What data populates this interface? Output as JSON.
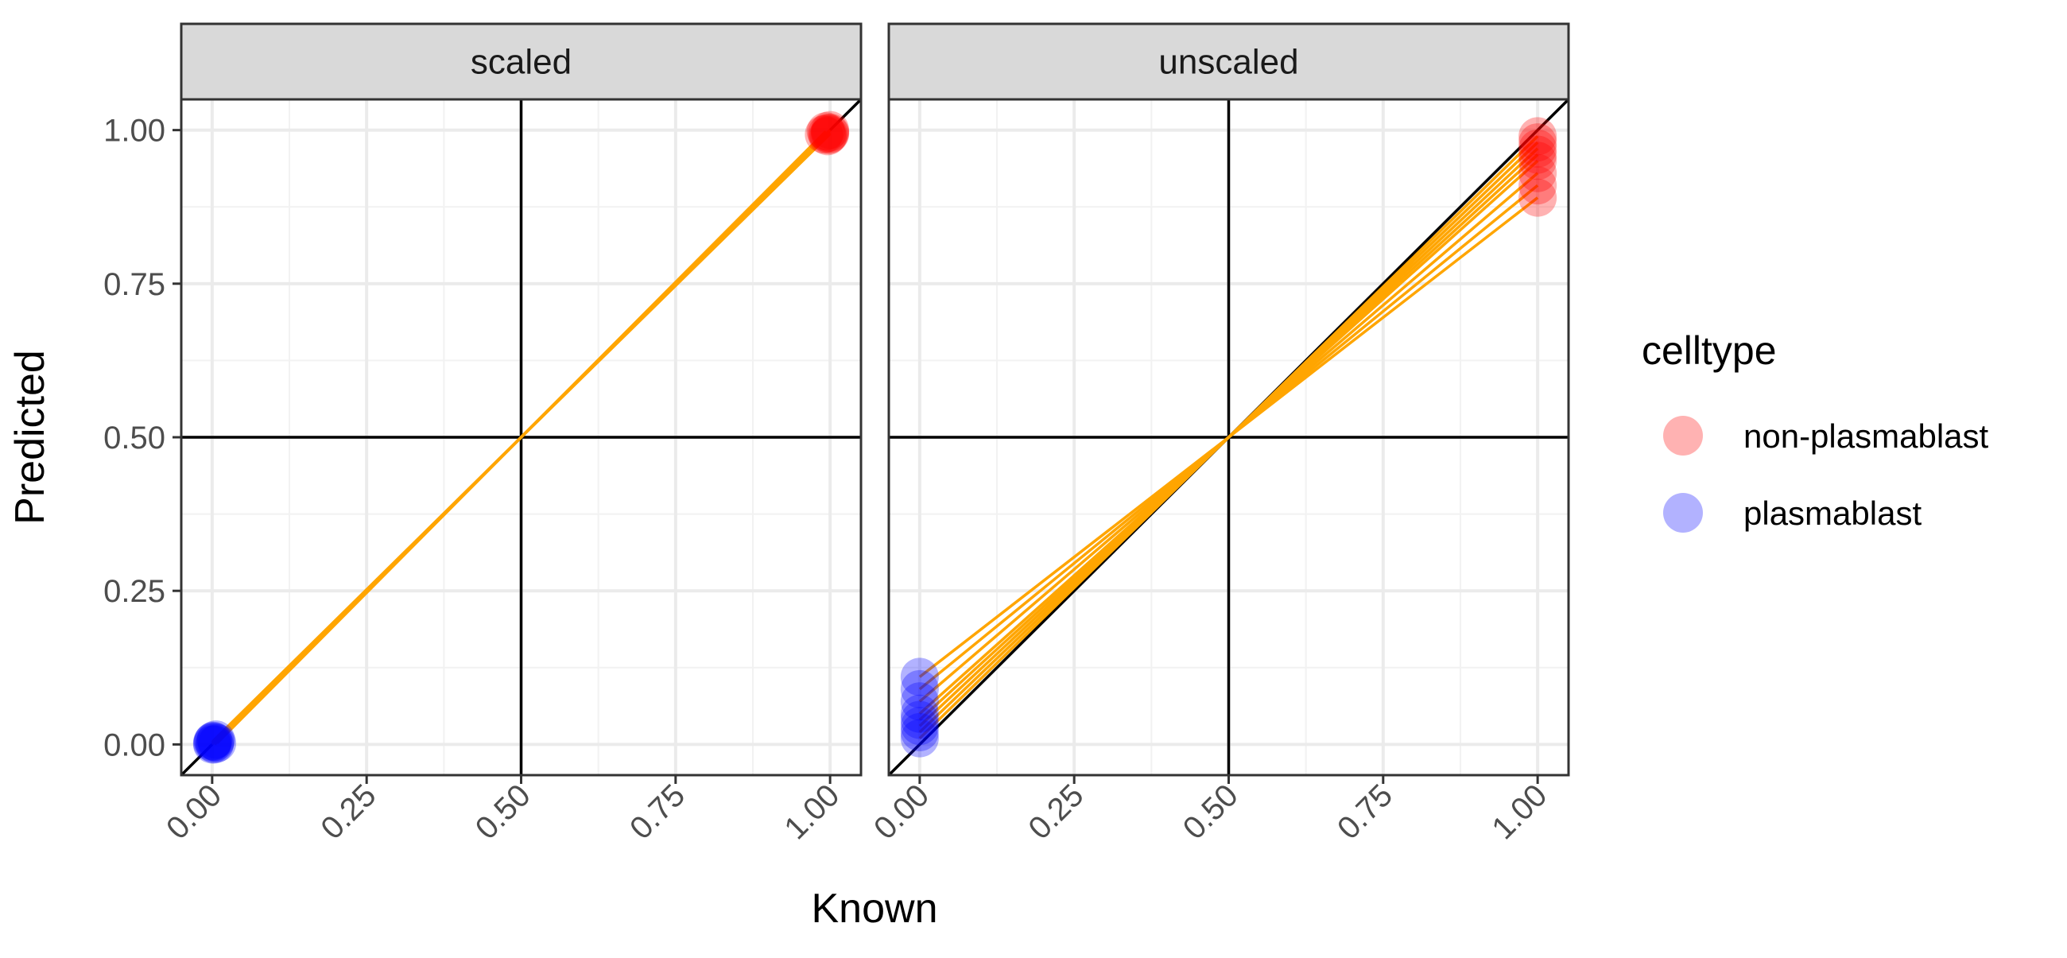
{
  "chart_data": {
    "type": "scatter",
    "xlabel": "Known",
    "ylabel": "Predicted",
    "xlim": [
      -0.05,
      1.05
    ],
    "ylim": [
      -0.05,
      1.05
    ],
    "x_ticks": [
      "0.00",
      "0.25",
      "0.50",
      "0.75",
      "1.00"
    ],
    "y_ticks": [
      "0.00",
      "0.25",
      "0.50",
      "0.75",
      "1.00"
    ],
    "tick_values": [
      0,
      0.25,
      0.5,
      0.75,
      1
    ],
    "grid": true,
    "reference_lines": {
      "x": 0.5,
      "y": 0.5,
      "diagonal": "y = x"
    },
    "legend": {
      "title": "celltype",
      "placement": "right",
      "entries": [
        {
          "label": "non-plasmablast",
          "color": "#ff0000"
        },
        {
          "label": "plasmablast",
          "color": "#0000ff"
        }
      ]
    },
    "segment_color": "#ffa500",
    "panels": [
      {
        "title": "scaled",
        "series": [
          {
            "name": "non-plasmablast",
            "color": "#ff0000",
            "alpha": 0.3,
            "points": [
              [
                0.995,
                0.995
              ],
              [
                1.0,
                0.996
              ],
              [
                0.99,
                0.993
              ],
              [
                1.0,
                1.0
              ],
              [
                0.998,
                0.992
              ],
              [
                0.993,
                0.998
              ],
              [
                1.0,
                0.994
              ],
              [
                0.996,
                0.99
              ]
            ]
          },
          {
            "name": "plasmablast",
            "color": "#0000ff",
            "alpha": 0.3,
            "points": [
              [
                0.0,
                0.0
              ],
              [
                0.005,
                0.004
              ],
              [
                0.002,
                0.006
              ],
              [
                0.008,
                0.002
              ],
              [
                0.0,
                0.003
              ],
              [
                0.004,
                0.0
              ],
              [
                0.006,
                0.008
              ],
              [
                0.001,
                0.005
              ]
            ]
          }
        ]
      },
      {
        "title": "unscaled",
        "series": [
          {
            "name": "non-plasmablast",
            "color": "#ff0000",
            "alpha": 0.3,
            "points": [
              [
                1.0,
                0.98
              ],
              [
                1.0,
                0.97
              ],
              [
                1.0,
                0.95
              ],
              [
                1.0,
                0.93
              ],
              [
                1.0,
                0.91
              ],
              [
                1.0,
                0.89
              ],
              [
                1.0,
                0.96
              ],
              [
                1.0,
                0.99
              ]
            ]
          },
          {
            "name": "plasmablast",
            "color": "#0000ff",
            "alpha": 0.3,
            "points": [
              [
                0.0,
                0.11
              ],
              [
                0.0,
                0.09
              ],
              [
                0.0,
                0.07
              ],
              [
                0.0,
                0.05
              ],
              [
                0.0,
                0.03
              ],
              [
                0.0,
                0.02
              ],
              [
                0.0,
                0.01
              ],
              [
                0.0,
                0.04
              ]
            ]
          }
        ]
      }
    ]
  }
}
